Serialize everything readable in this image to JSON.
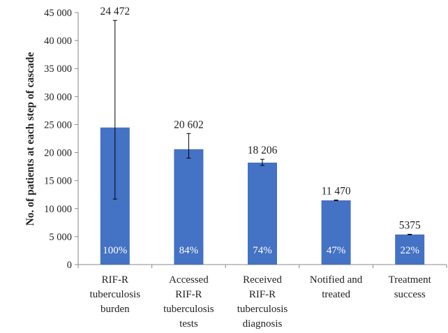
{
  "chart_data": {
    "type": "bar",
    "ylabel": "No. of patients at each step of cascade",
    "xlabel": "",
    "ylim": [
      0,
      45000
    ],
    "yticks": [
      0,
      5000,
      10000,
      15000,
      20000,
      25000,
      30000,
      35000,
      40000,
      45000
    ],
    "ytick_labels": [
      "0",
      "5 000",
      "10 000",
      "15 000",
      "20 000",
      "25 000",
      "30 000",
      "35 000",
      "40 000",
      "45 000"
    ],
    "categories": [
      [
        "RIF-R",
        "tuberculosis",
        "burden"
      ],
      [
        "Accessed",
        "RIF-R",
        "tuberculosis",
        "tests"
      ],
      [
        "Received",
        "RIF-R",
        "tuberculosis",
        "diagnosis"
      ],
      [
        "Notified and",
        "treated"
      ],
      [
        "Treatment",
        "success"
      ]
    ],
    "values": [
      24472,
      20602,
      18206,
      11470,
      5375
    ],
    "value_labels": [
      "24 472",
      "20 602",
      "18 206",
      "11 470",
      "5375"
    ],
    "percent_labels": [
      "100%",
      "84%",
      "74%",
      "47%",
      "22%"
    ],
    "error_low": [
      11700,
      19000,
      17700,
      11400,
      5330
    ],
    "error_high": [
      43600,
      23400,
      18800,
      11540,
      5420
    ],
    "bar_color": "#4472c4",
    "error_bar_color": "#000000",
    "grid": false,
    "legend": "none"
  }
}
